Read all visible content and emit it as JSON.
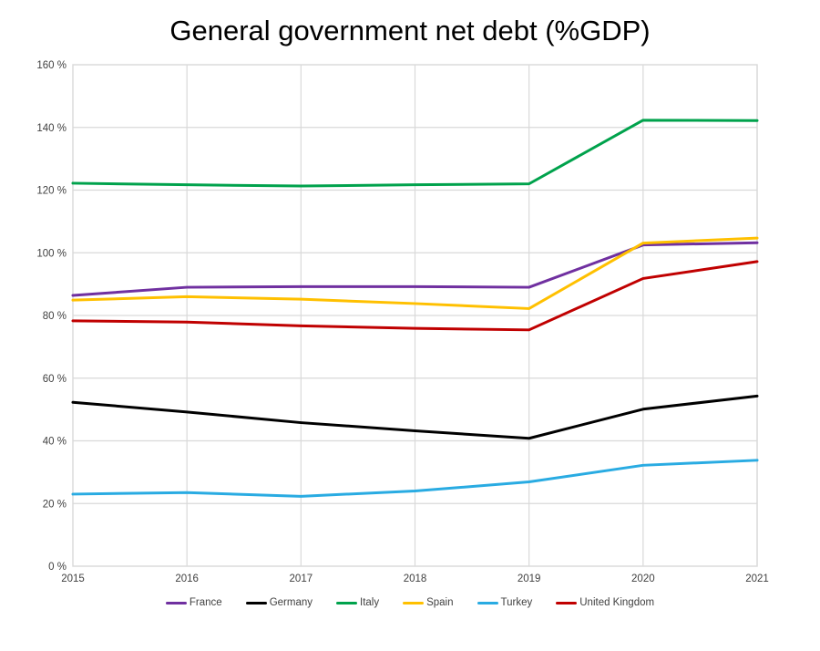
{
  "chart_data": {
    "type": "line",
    "title": "General government net debt (%GDP)",
    "x": [
      2015,
      2016,
      2017,
      2018,
      2019,
      2020,
      2021
    ],
    "xtick_labels": [
      "2015",
      "2016",
      "2017",
      "2018",
      "2019",
      "2020",
      "2021"
    ],
    "ytick_labels": [
      "0 %",
      "20 %",
      "40 %",
      "60 %",
      "80 %",
      "100 %",
      "120 %",
      "140 %",
      "160 %"
    ],
    "ylim": [
      0,
      160
    ],
    "ytick_step": 20,
    "grid": true,
    "legend_position": "bottom",
    "series": [
      {
        "name": "France",
        "color": "#7030A0",
        "values": [
          86.4,
          89.0,
          89.2,
          89.2,
          89.0,
          102.5,
          103.2
        ]
      },
      {
        "name": "Germany",
        "color": "#000000",
        "values": [
          52.3,
          49.2,
          45.8,
          43.2,
          40.8,
          50.1,
          54.3
        ]
      },
      {
        "name": "Italy",
        "color": "#00A24C",
        "values": [
          122.2,
          121.7,
          121.3,
          121.7,
          122.0,
          142.3,
          142.2
        ]
      },
      {
        "name": "Spain",
        "color": "#FFC000",
        "values": [
          84.9,
          86.0,
          85.2,
          83.8,
          82.2,
          103.1,
          104.7
        ]
      },
      {
        "name": "Turkey",
        "color": "#29ABE2",
        "values": [
          23.0,
          23.5,
          22.3,
          24.0,
          26.9,
          32.2,
          33.8
        ]
      },
      {
        "name": "United Kingdom",
        "color": "#C00000",
        "values": [
          78.3,
          77.9,
          76.7,
          75.9,
          75.4,
          91.8,
          97.2
        ]
      }
    ],
    "style": {
      "grid_color": "#D9D9D9",
      "tick_label_color": "#404040",
      "line_width": 3
    }
  }
}
